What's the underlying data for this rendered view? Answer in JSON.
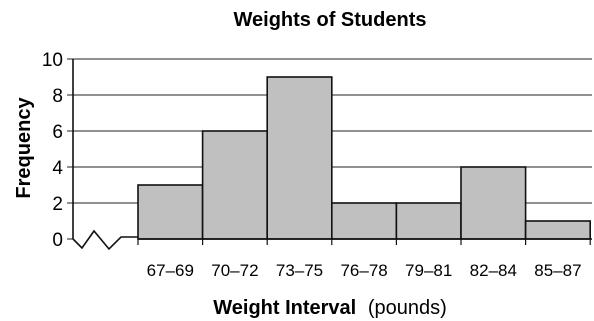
{
  "chart_data": {
    "type": "bar",
    "title": "Weights of Students",
    "xlabel": "Weight Interval",
    "xlabel_unit": "(pounds)",
    "ylabel": "Frequency",
    "categories": [
      "67–69",
      "70–72",
      "73–75",
      "76–78",
      "79–81",
      "82–84",
      "85–87"
    ],
    "values": [
      3,
      6,
      9,
      2,
      2,
      4,
      1
    ],
    "ylim": [
      0,
      10
    ],
    "yticks": [
      "0",
      "2",
      "4",
      "6",
      "8",
      "10"
    ],
    "grid": true,
    "axis_break": true,
    "bar_color": "#c0c0c0"
  }
}
